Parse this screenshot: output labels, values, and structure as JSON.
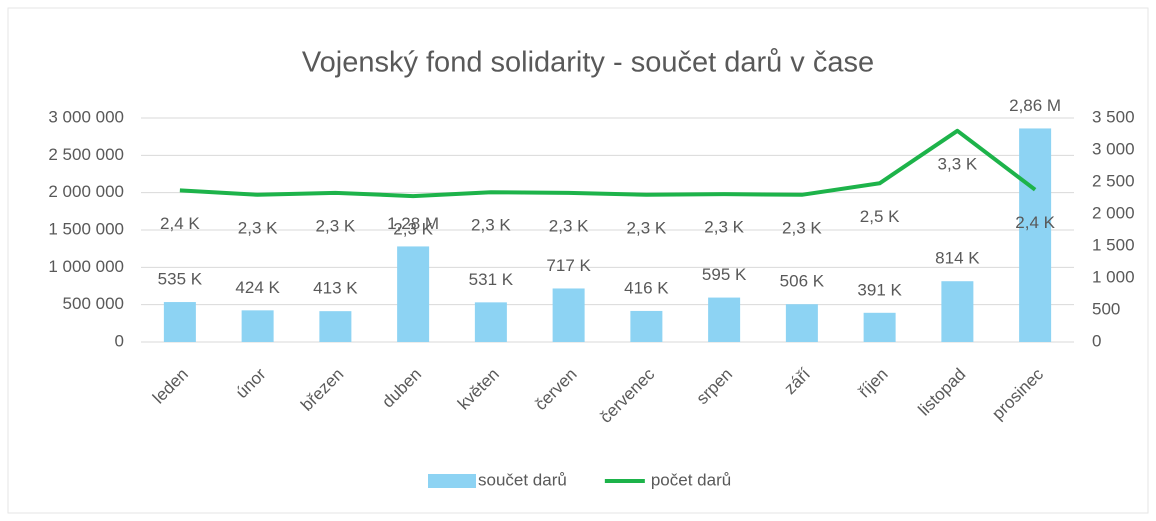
{
  "chart_data": {
    "type": "bar_line",
    "title": "Vojenský fond solidarity - součet darů v čase",
    "categories": [
      "leden",
      "únor",
      "březen",
      "duben",
      "květen",
      "červen",
      "červenec",
      "srpen",
      "září",
      "říjen",
      "listopad",
      "prosinec"
    ],
    "series": [
      {
        "name": "součet darů",
        "type": "bar",
        "color": "#8dd3f3",
        "values": [
          535000,
          424000,
          413000,
          1280000,
          531000,
          717000,
          416000,
          595000,
          506000,
          391000,
          814000,
          2860000
        ],
        "value_labels": [
          "535 K",
          "424 K",
          "413 K",
          "1,28 M",
          "531 K",
          "717 K",
          "416 K",
          "595 K",
          "506 K",
          "391 K",
          "814 K",
          "2,86 M"
        ]
      },
      {
        "name": "počet darů",
        "type": "line",
        "axis": "y2",
        "color": "#1db34a",
        "values": [
          2370,
          2300,
          2330,
          2280,
          2340,
          2330,
          2300,
          2310,
          2300,
          2480,
          3300,
          2380
        ],
        "value_labels": [
          "2,4 K",
          "2,3 K",
          "2,3 K",
          "2,3 K",
          "2,3 K",
          "2,3 K",
          "2,3 K",
          "2,3 K",
          "2,3 K",
          "2,5 K",
          "3,3 K",
          "2,4 K"
        ]
      }
    ],
    "ylim": [
      0,
      3000000
    ],
    "yticks": [
      0,
      {
        "value": 500000,
        "label": "500 000"
      },
      {
        "value": 1000000,
        "label": "1 000 000"
      },
      {
        "value": 1500000,
        "label": "1 500 000"
      },
      {
        "value": 2000000,
        "label": "2 000 000"
      },
      {
        "value": 2500000,
        "label": "2 500 000"
      },
      {
        "value": 3000000,
        "label": "3 000 000"
      }
    ],
    "y2lim": [
      0,
      3500
    ],
    "y2ticks": [
      0,
      500,
      {
        "value": 1000,
        "label": "1 000"
      },
      {
        "value": 1500,
        "label": "1 500"
      },
      {
        "value": 2000,
        "label": "2 000"
      },
      {
        "value": 2500,
        "label": "2 500"
      },
      {
        "value": 3000,
        "label": "3 000"
      },
      {
        "value": 3500,
        "label": "3 500"
      }
    ],
    "grid": true,
    "legend": "bottom"
  }
}
